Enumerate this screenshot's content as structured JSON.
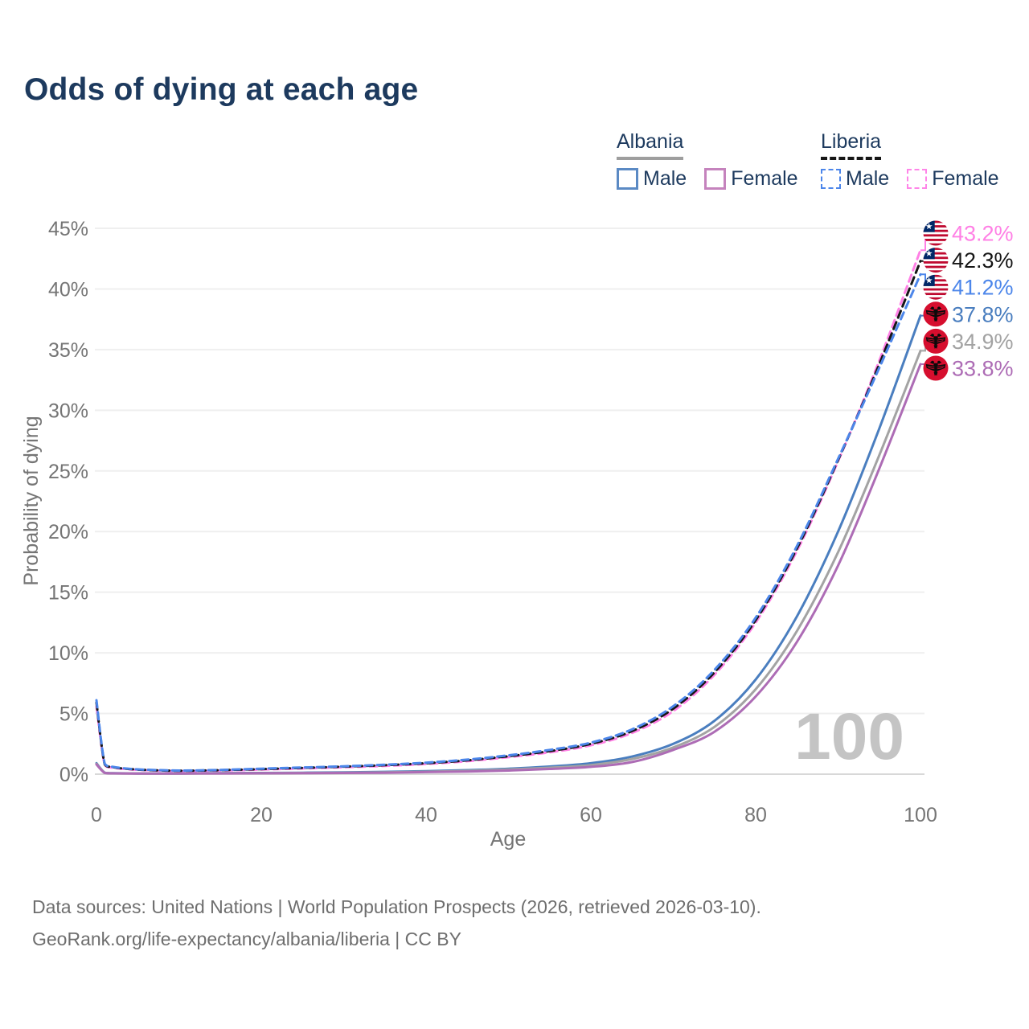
{
  "title": "Odds of dying at each age",
  "legend": {
    "groups": [
      {
        "country": "Albania",
        "line_style": "solid",
        "underline_color": "#9e9e9e",
        "items": [
          {
            "label": "Male",
            "color": "#5b8ac4"
          },
          {
            "label": "Female",
            "color": "#c583bd"
          }
        ]
      },
      {
        "country": "Liberia",
        "line_style": "dashed",
        "underline_color": "#161616",
        "items": [
          {
            "label": "Male",
            "color": "#4c86ea"
          },
          {
            "label": "Female",
            "color": "#ff85e8"
          }
        ]
      }
    ]
  },
  "chart_data": {
    "type": "line",
    "title": "Odds of dying at each age",
    "xlabel": "Age",
    "ylabel": "Probability of dying",
    "xlim": [
      0,
      100
    ],
    "ylim": [
      0,
      45
    ],
    "grid": true,
    "watermark": "100",
    "x_tick_values": [
      0,
      20,
      40,
      60,
      80,
      100
    ],
    "x_tick_labels": [
      "0",
      "20",
      "40",
      "60",
      "80",
      "100"
    ],
    "y_tick_values": [
      0,
      5,
      10,
      15,
      20,
      25,
      30,
      35,
      40,
      45
    ],
    "y_tick_labels": [
      "0%",
      "5%",
      "10%",
      "15%",
      "20%",
      "25%",
      "30%",
      "35%",
      "40%",
      "45%"
    ],
    "x": [
      0,
      1,
      2,
      5,
      10,
      15,
      20,
      25,
      30,
      35,
      40,
      45,
      50,
      55,
      60,
      65,
      70,
      75,
      80,
      85,
      90,
      95,
      100
    ],
    "series": [
      {
        "name": "Liberia Female",
        "country": "Liberia",
        "sex": "Female",
        "color": "#ff80e5",
        "dash": true,
        "end_label": "43.2%",
        "values": [
          5.6,
          0.75,
          0.53,
          0.36,
          0.26,
          0.3,
          0.38,
          0.47,
          0.57,
          0.68,
          0.84,
          1.07,
          1.4,
          1.8,
          2.38,
          3.4,
          5.2,
          8.2,
          12.5,
          18.4,
          25.8,
          34.1,
          43.2
        ]
      },
      {
        "name": "Liberia Overall",
        "country": "Liberia",
        "sex": "Both",
        "color": "#161616",
        "dash": true,
        "end_label": "42.3%",
        "values": [
          5.9,
          0.8,
          0.57,
          0.38,
          0.28,
          0.33,
          0.42,
          0.52,
          0.62,
          0.74,
          0.9,
          1.14,
          1.48,
          1.9,
          2.5,
          3.55,
          5.4,
          8.4,
          12.7,
          18.6,
          25.9,
          33.8,
          42.3
        ]
      },
      {
        "name": "Liberia Male",
        "country": "Liberia",
        "sex": "Male",
        "color": "#4c86ea",
        "dash": true,
        "end_label": "41.2%",
        "values": [
          6.1,
          0.85,
          0.6,
          0.4,
          0.3,
          0.35,
          0.45,
          0.55,
          0.65,
          0.78,
          0.95,
          1.2,
          1.55,
          2.0,
          2.6,
          3.7,
          5.6,
          8.6,
          12.9,
          18.8,
          26.0,
          33.5,
          41.2
        ]
      },
      {
        "name": "Albania Male",
        "country": "Albania",
        "sex": "Male",
        "color": "#4a7ebf",
        "dash": false,
        "end_label": "37.8%",
        "values": [
          0.9,
          0.12,
          0.08,
          0.06,
          0.06,
          0.08,
          0.1,
          0.12,
          0.15,
          0.19,
          0.25,
          0.33,
          0.45,
          0.63,
          0.9,
          1.45,
          2.5,
          4.4,
          7.8,
          13.0,
          20.0,
          28.5,
          37.8
        ]
      },
      {
        "name": "Albania Overall",
        "country": "Albania",
        "sex": "Both",
        "color": "#a3a3a3",
        "dash": false,
        "end_label": "34.9%",
        "values": [
          0.85,
          0.11,
          0.07,
          0.055,
          0.055,
          0.07,
          0.08,
          0.1,
          0.12,
          0.15,
          0.2,
          0.27,
          0.38,
          0.53,
          0.75,
          1.25,
          2.2,
          3.9,
          7.0,
          11.8,
          18.3,
          26.3,
          34.9
        ]
      },
      {
        "name": "Albania Female",
        "country": "Albania",
        "sex": "Female",
        "color": "#ad6cb5",
        "dash": false,
        "end_label": "33.8%",
        "values": [
          0.8,
          0.1,
          0.065,
          0.05,
          0.05,
          0.06,
          0.07,
          0.08,
          0.1,
          0.12,
          0.17,
          0.22,
          0.3,
          0.43,
          0.6,
          1.0,
          2.0,
          3.5,
          6.4,
          10.9,
          17.2,
          25.2,
          33.8
        ]
      }
    ],
    "flag_colors": {
      "liberia_red": "#bf0a30",
      "liberia_blue": "#002868",
      "albania_red": "#d60e2e",
      "eagle_black": "#0a0a0a"
    },
    "axis_text_color": "#757575",
    "grid_color": "#efefef",
    "zero_line_color": "#d8d8d8",
    "watermark_color": "#c4c4c4"
  },
  "footer": {
    "line1": "Data sources: United Nations | World Population Prospects (2026, retrieved 2026-03-10).",
    "line2": "GeoRank.org/life-expectancy/albania/liberia | CC BY"
  }
}
